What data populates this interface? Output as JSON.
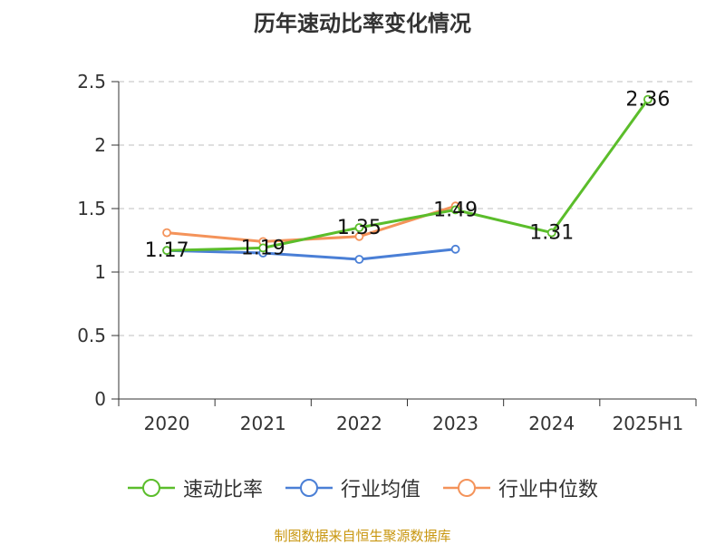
{
  "chart_data": {
    "type": "line",
    "title": "历年速动比率变化情况",
    "categories": [
      "2020",
      "2021",
      "2022",
      "2023",
      "2024",
      "2025H1"
    ],
    "ylim": [
      0,
      2.5
    ],
    "yticks": [
      0,
      0.5,
      1,
      1.5,
      2,
      2.5
    ],
    "ytick_labels": [
      "0",
      "0.5",
      "1",
      "1.5",
      "2",
      "2.5"
    ],
    "grid": true,
    "legend_position": "bottom",
    "series": [
      {
        "name": "速动比率",
        "color": "#5bbd2b",
        "values": [
          1.17,
          1.19,
          1.35,
          1.49,
          1.31,
          2.36
        ],
        "data_labels": [
          "1.17",
          "1.19",
          "1.35",
          "1.49",
          "1.31",
          "2.36"
        ]
      },
      {
        "name": "行业均值",
        "color": "#4a7fd6",
        "values": [
          1.17,
          1.15,
          1.1,
          1.18,
          null,
          null
        ]
      },
      {
        "name": "行业中位数",
        "color": "#f4935a",
        "values": [
          1.31,
          1.24,
          1.28,
          1.52,
          null,
          null
        ]
      }
    ]
  },
  "source_text": "制图数据来自恒生聚源数据库"
}
